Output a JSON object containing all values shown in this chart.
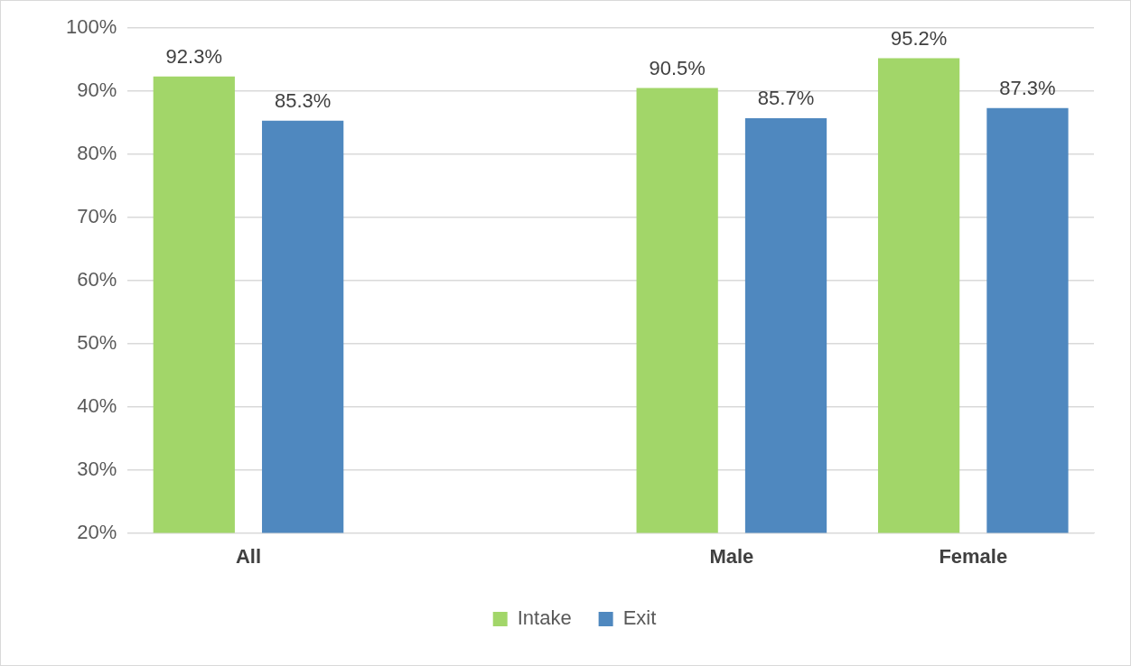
{
  "chart_data": {
    "type": "bar",
    "categories": [
      "All",
      null,
      "Male",
      "Female"
    ],
    "series": [
      {
        "name": "Intake",
        "color": "#a2d669",
        "values": [
          92.3,
          null,
          90.5,
          95.2
        ],
        "value_labels": [
          "92.3%",
          null,
          "90.5%",
          "95.2%"
        ]
      },
      {
        "name": "Exit",
        "color": "#4f88bf",
        "values": [
          85.3,
          null,
          85.7,
          87.3
        ],
        "value_labels": [
          "85.3%",
          null,
          "85.7%",
          "87.3%"
        ]
      }
    ],
    "ylim": [
      20,
      100
    ],
    "yticks": [
      {
        "value": 20,
        "label": "20%"
      },
      {
        "value": 30,
        "label": "30%"
      },
      {
        "value": 40,
        "label": "40%"
      },
      {
        "value": 50,
        "label": "50%"
      },
      {
        "value": 60,
        "label": "60%"
      },
      {
        "value": 70,
        "label": "70%"
      },
      {
        "value": 80,
        "label": "80%"
      },
      {
        "value": 90,
        "label": "90%"
      },
      {
        "value": 100,
        "label": "100%"
      }
    ],
    "grid": "y",
    "legend": "bottom"
  }
}
